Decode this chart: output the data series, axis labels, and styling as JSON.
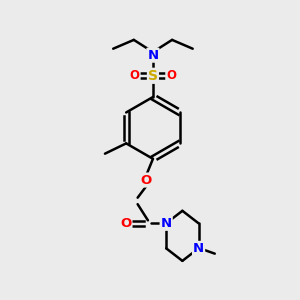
{
  "background_color": "#ebebeb",
  "bond_color": "black",
  "bond_width": 1.8,
  "atom_colors": {
    "N": "#0000FF",
    "O": "#FF0000",
    "S": "#CCAA00",
    "C": "black"
  },
  "font_size": 8.5,
  "figsize": [
    3.0,
    3.0
  ],
  "dpi": 100
}
